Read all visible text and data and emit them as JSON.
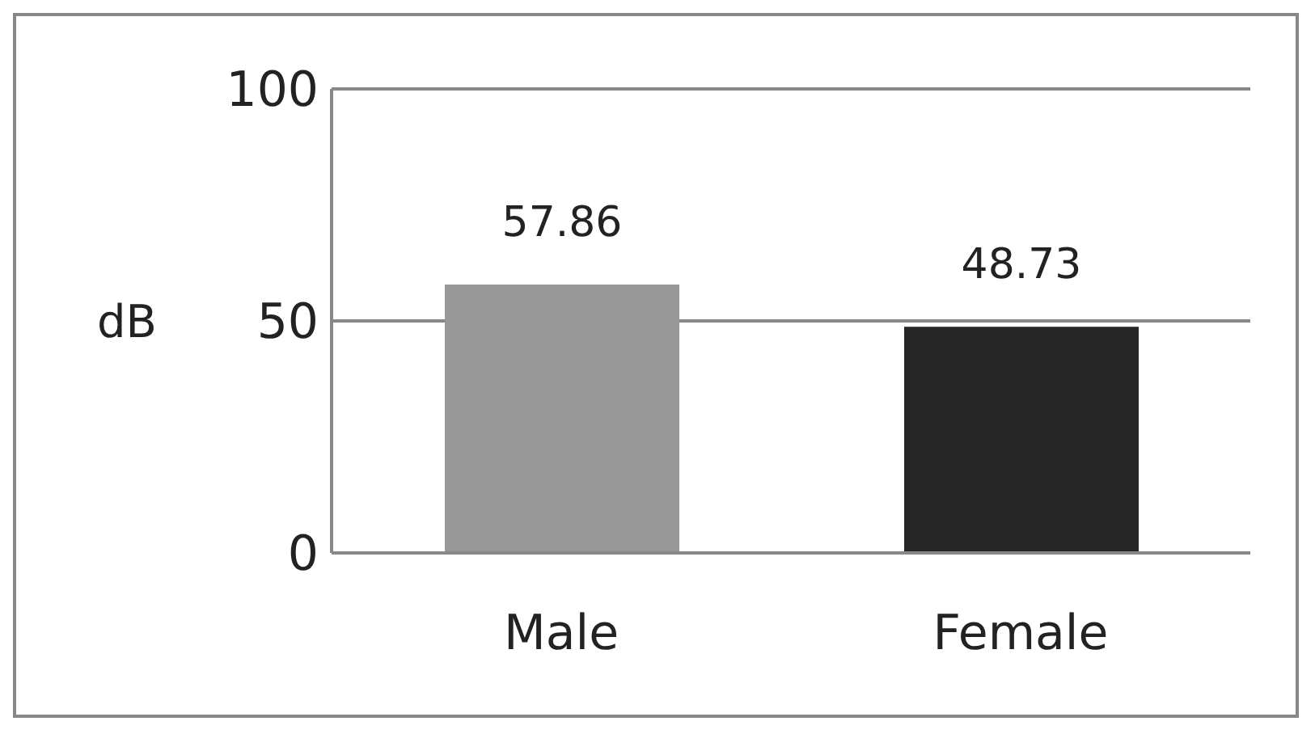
{
  "chart_data": {
    "type": "bar",
    "ylabel": "dB",
    "categories": [
      "Male",
      "Female"
    ],
    "values": [
      57.86,
      48.73
    ],
    "colors": [
      "#999999",
      "#262626"
    ],
    "ylim": [
      0,
      100
    ],
    "yticks": [
      0,
      50,
      100
    ],
    "grid": "y",
    "data_labels": true
  }
}
